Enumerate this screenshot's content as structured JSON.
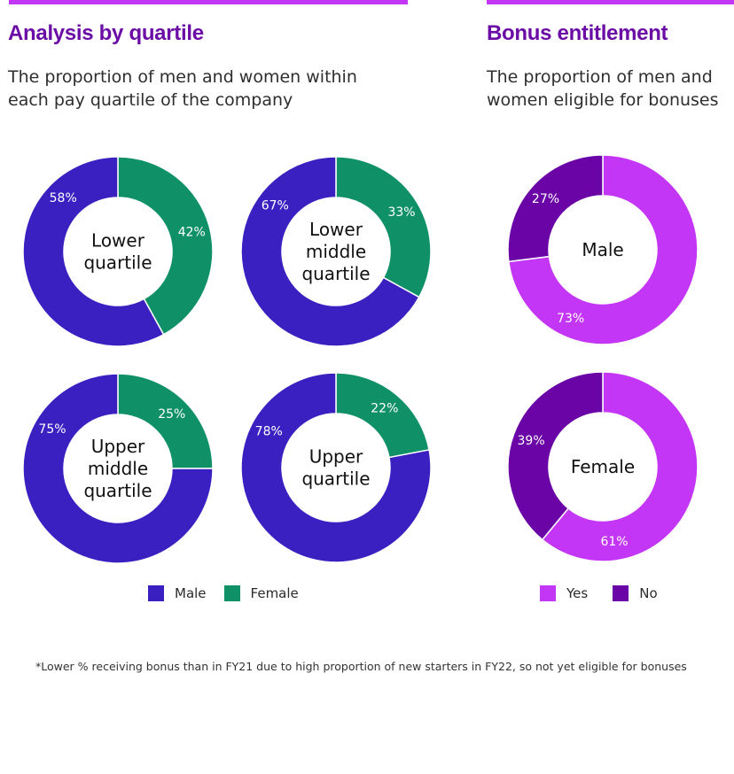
{
  "sections": {
    "quartile": {
      "title": "Analysis by quartile",
      "subtitle": "The proportion of men and women within each pay quartile of the company"
    },
    "bonus": {
      "title": "Bonus entitlement",
      "subtitle": "The proportion of men and women eligible for bonuses"
    }
  },
  "colors": {
    "male": "#3a1fc1",
    "female": "#0f9067",
    "yes": "#c436f5",
    "no": "#6a04a6",
    "accent_bar": "#c436f5",
    "title": "#6a0ca5"
  },
  "legends": {
    "quartile": [
      {
        "label": "Male",
        "color": "#3a1fc1"
      },
      {
        "label": "Female",
        "color": "#0f9067"
      }
    ],
    "bonus": [
      {
        "label": "Yes",
        "color": "#c436f5"
      },
      {
        "label": "No",
        "color": "#6a04a6"
      }
    ]
  },
  "footnote": "*Lower % receiving bonus than in FY21 due to high proportion of new starters in FY22, so not yet eligible for bonuses",
  "chart_data": [
    {
      "type": "pie",
      "variant": "donut",
      "title": "Lower quartile",
      "center_label": [
        "Lower",
        "quartile"
      ],
      "slices": [
        {
          "name": "Female",
          "value": 42,
          "label": "42%",
          "color": "#0f9067"
        },
        {
          "name": "Male",
          "value": 58,
          "label": "58%",
          "color": "#3a1fc1"
        }
      ]
    },
    {
      "type": "pie",
      "variant": "donut",
      "title": "Lower middle quartile",
      "center_label": [
        "Lower",
        "middle",
        "quartile"
      ],
      "slices": [
        {
          "name": "Female",
          "value": 33,
          "label": "33%",
          "color": "#0f9067"
        },
        {
          "name": "Male",
          "value": 67,
          "label": "67%",
          "color": "#3a1fc1"
        }
      ]
    },
    {
      "type": "pie",
      "variant": "donut",
      "title": "Upper middle quartile",
      "center_label": [
        "Upper",
        "middle",
        "quartile"
      ],
      "slices": [
        {
          "name": "Female",
          "value": 25,
          "label": "25%",
          "color": "#0f9067"
        },
        {
          "name": "Male",
          "value": 75,
          "label": "75%",
          "color": "#3a1fc1"
        }
      ]
    },
    {
      "type": "pie",
      "variant": "donut",
      "title": "Upper quartile",
      "center_label": [
        "Upper",
        "quartile"
      ],
      "slices": [
        {
          "name": "Female",
          "value": 22,
          "label": "22%",
          "color": "#0f9067"
        },
        {
          "name": "Male",
          "value": 78,
          "label": "78%",
          "color": "#3a1fc1"
        }
      ]
    },
    {
      "type": "pie",
      "variant": "donut",
      "title": "Male bonus entitlement",
      "center_label": [
        "Male"
      ],
      "slices": [
        {
          "name": "Yes",
          "value": 73,
          "label": "73%",
          "color": "#c436f5"
        },
        {
          "name": "No",
          "value": 27,
          "label": "27%",
          "color": "#6a04a6"
        }
      ]
    },
    {
      "type": "pie",
      "variant": "donut",
      "title": "Female bonus entitlement",
      "center_label": [
        "Female"
      ],
      "slices": [
        {
          "name": "Yes",
          "value": 61,
          "label": "61%",
          "color": "#c436f5"
        },
        {
          "name": "No",
          "value": 39,
          "label": "39%",
          "color": "#6a04a6"
        }
      ]
    }
  ]
}
